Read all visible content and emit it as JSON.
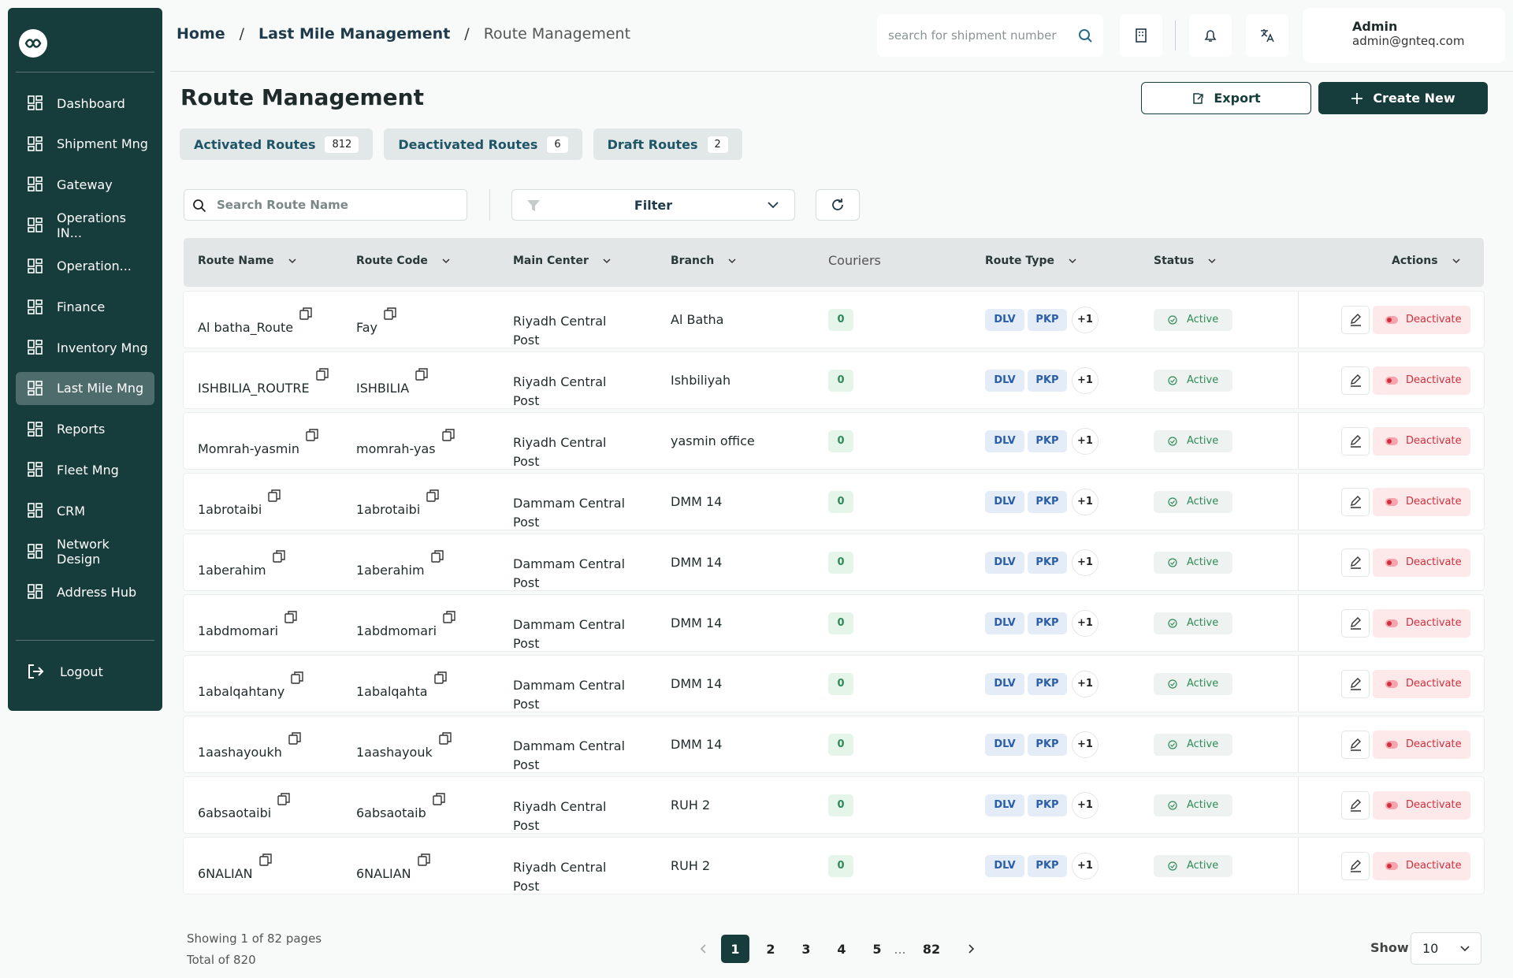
{
  "sidebar": {
    "items": [
      "Dashboard",
      "Shipment Mng",
      "Gateway",
      "Operations IN...",
      "Operation...",
      "Finance",
      "Inventory Mng",
      "Last Mile Mng",
      "Reports",
      "Fleet Mng",
      "CRM",
      "Network Design",
      "Address Hub"
    ],
    "active": 7,
    "logout": "Logout"
  },
  "header": {
    "breadcrumb": [
      "Home",
      "Last Mile Management",
      "Route Management"
    ],
    "separator": "/",
    "search_placeholder": "search for shipment number",
    "user_name": "Admin",
    "user_email": "admin@gnteq.com"
  },
  "page": {
    "title": "Route Management",
    "export": "Export",
    "create": "Create New"
  },
  "tabs": [
    {
      "label": "Activated Routes",
      "count": "812"
    },
    {
      "label": "Deactivated Routes",
      "count": "6"
    },
    {
      "label": "Draft Routes",
      "count": "2"
    }
  ],
  "toolbar": {
    "search_placeholder": "Search Route Name",
    "filter": "Filter"
  },
  "table": {
    "columns": [
      "Route Name",
      "Route Code",
      "Main Center",
      "Branch",
      "Couriers",
      "Route Type",
      "Status",
      "Actions"
    ],
    "rows": [
      [
        "Al batha_Route",
        "Fay",
        "Riyadh Central Post",
        "Al Batha",
        "0",
        "DLV",
        "PKP",
        "+1",
        "Active",
        "Deactivate"
      ],
      [
        "ISHBILIA_ROUTRE",
        "ISHBILIA",
        "Riyadh Central Post",
        "Ishbiliyah",
        "0",
        "DLV",
        "PKP",
        "+1",
        "Active",
        "Deactivate"
      ],
      [
        "Momrah-yasmin",
        "momrah-yas",
        "Riyadh Central Post",
        "yasmin office",
        "0",
        "DLV",
        "PKP",
        "+1",
        "Active",
        "Deactivate"
      ],
      [
        "1abrotaibi",
        "1abrotaibi",
        "Dammam Central Post",
        "DMM 14",
        "0",
        "DLV",
        "PKP",
        "+1",
        "Active",
        "Deactivate"
      ],
      [
        "1aberahim",
        "1aberahim",
        "Dammam Central Post",
        "DMM 14",
        "0",
        "DLV",
        "PKP",
        "+1",
        "Active",
        "Deactivate"
      ],
      [
        "1abdmomari",
        "1abdmomari",
        "Dammam Central Post",
        "DMM 14",
        "0",
        "DLV",
        "PKP",
        "+1",
        "Active",
        "Deactivate"
      ],
      [
        "1abalqahtany",
        "1abalqahta",
        "Dammam Central Post",
        "DMM 14",
        "0",
        "DLV",
        "PKP",
        "+1",
        "Active",
        "Deactivate"
      ],
      [
        "1aashayoukh",
        "1aashayouk",
        "Dammam Central Post",
        "DMM 14",
        "0",
        "DLV",
        "PKP",
        "+1",
        "Active",
        "Deactivate"
      ],
      [
        "6absaotaibi",
        "6absaotaib",
        "Riyadh Central Post",
        "RUH 2",
        "0",
        "DLV",
        "PKP",
        "+1",
        "Active",
        "Deactivate"
      ],
      [
        "6NALIAN",
        "6NALIAN",
        "Riyadh Central Post",
        "RUH 2",
        "0",
        "DLV",
        "PKP",
        "+1",
        "Active",
        "Deactivate"
      ]
    ]
  },
  "pagination": {
    "info": "Showing 1 of 82 pages",
    "total": "Total of 820",
    "pages": [
      "1",
      "2",
      "3",
      "4",
      "5",
      "...",
      "82"
    ],
    "current": 0,
    "show_label": "Show",
    "page_size": "10"
  }
}
